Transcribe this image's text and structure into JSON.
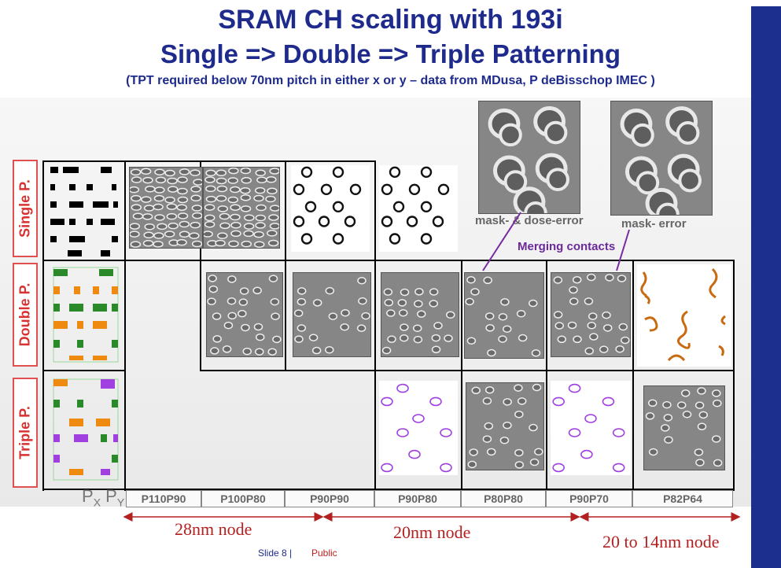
{
  "title_line1": "SRAM CH scaling with 193i",
  "title_line2": "Single => Double => Triple Patterning",
  "subtitle": "(TPT required below 70nm pitch in either x or y – data from MDusa, P deBisschop IMEC )",
  "rows": {
    "single": "Single P.",
    "double": "Double P.",
    "triple": "Triple P."
  },
  "pitch_header": "P",
  "pitch_header_sub1": "X",
  "pitch_header_sub2": "Y",
  "pitches": [
    "P110P90",
    "P100P80",
    "P90P90",
    "P90P80",
    "P80P80",
    "P90P70",
    "P82P64"
  ],
  "nodes": [
    "28nm node",
    "20nm node",
    "20 to 14nm node"
  ],
  "annotations": {
    "mask_dose_error": "mask- & dose-error",
    "mask_error": "mask- error",
    "merging_contacts": "Merging contacts"
  },
  "footer": {
    "slide": "Slide 8 |",
    "public": "Public"
  },
  "colors": {
    "title": "#1e2b8c",
    "row_label": "#d93030",
    "node_label": "#b32020",
    "merging": "#6a2a9a",
    "sidebar": "#1c2e8e",
    "green": "#2a8a2a",
    "orange": "#ee8a10",
    "purple": "#a040e0"
  }
}
